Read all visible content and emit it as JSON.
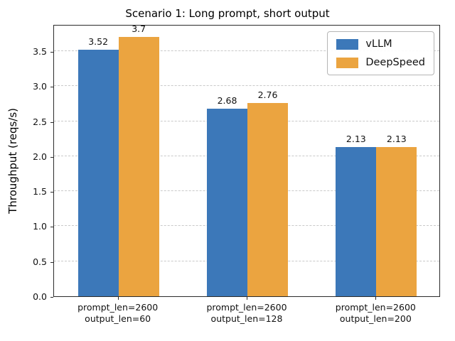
{
  "chart_data": {
    "type": "bar",
    "title": "Scenario 1: Long prompt, short output",
    "xlabel": "",
    "ylabel": "Throughput (reqs/s)",
    "categories": [
      [
        "prompt_len=2600",
        "output_len=60"
      ],
      [
        "prompt_len=2600",
        "output_len=128"
      ],
      [
        "prompt_len=2600",
        "output_len=200"
      ]
    ],
    "series": [
      {
        "name": "vLLM",
        "color": "#3c78b9",
        "values": [
          3.52,
          2.68,
          2.13
        ]
      },
      {
        "name": "DeepSpeed",
        "color": "#eba440",
        "values": [
          3.7,
          2.76,
          2.13
        ]
      }
    ],
    "ylim": [
      0,
      3.885
    ],
    "yticks": [
      0.0,
      0.5,
      1.0,
      1.5,
      2.0,
      2.5,
      3.0,
      3.5
    ],
    "grid": true,
    "grid_style": "dashed",
    "legend_position": "upper right"
  }
}
